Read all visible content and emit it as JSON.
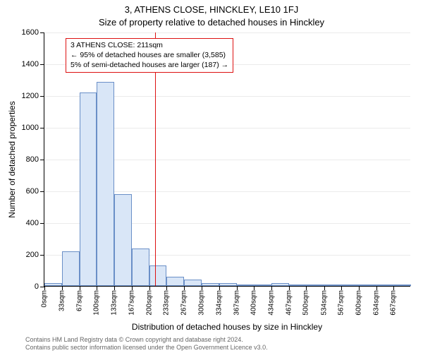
{
  "title_line1": "3, ATHENS CLOSE, HINCKLEY, LE10 1FJ",
  "title_line2": "Size of property relative to detached houses in Hinckley",
  "y_axis_title": "Number of detached properties",
  "x_axis_title": "Distribution of detached houses by size in Hinckley",
  "chart": {
    "type": "histogram",
    "ylim": [
      0,
      1600
    ],
    "ytick_step": 200,
    "xlim": [
      0,
      700
    ],
    "categories": [
      "0sqm",
      "33sqm",
      "67sqm",
      "100sqm",
      "133sqm",
      "167sqm",
      "200sqm",
      "233sqm",
      "267sqm",
      "300sqm",
      "334sqm",
      "367sqm",
      "400sqm",
      "434sqm",
      "467sqm",
      "500sqm",
      "534sqm",
      "567sqm",
      "600sqm",
      "634sqm",
      "667sqm"
    ],
    "x_positions": [
      0,
      33,
      67,
      100,
      133,
      167,
      200,
      233,
      267,
      300,
      334,
      367,
      400,
      434,
      467,
      500,
      534,
      567,
      600,
      634,
      667
    ],
    "bin_edges": [
      0,
      33,
      67,
      100,
      133,
      167,
      200,
      233,
      267,
      300,
      334,
      367,
      400,
      434,
      467,
      500,
      534,
      567,
      600,
      634,
      667,
      700
    ],
    "values": [
      18,
      220,
      1220,
      1285,
      580,
      235,
      130,
      60,
      38,
      18,
      18,
      8,
      4,
      18,
      4,
      2,
      2,
      0,
      2,
      2,
      0
    ],
    "bar_fill": "#d9e6f7",
    "bar_stroke": "#6a8fc7",
    "background_color": "#ffffff",
    "grid_color": "#e0e0e0",
    "tick_fontsize": 11,
    "label_fontsize": 12,
    "title_fontsize": 13,
    "refline_x": 211,
    "refline_color": "#d11"
  },
  "annotation": {
    "line1": "3 ATHENS CLOSE: 211sqm",
    "line2": "← 95% of detached houses are smaller (3,585)",
    "line3": "5% of semi-detached houses are larger (187) →"
  },
  "footer": {
    "line1": "Contains HM Land Registry data © Crown copyright and database right 2024.",
    "line2": "Contains public sector information licensed under the Open Government Licence v3.0."
  }
}
